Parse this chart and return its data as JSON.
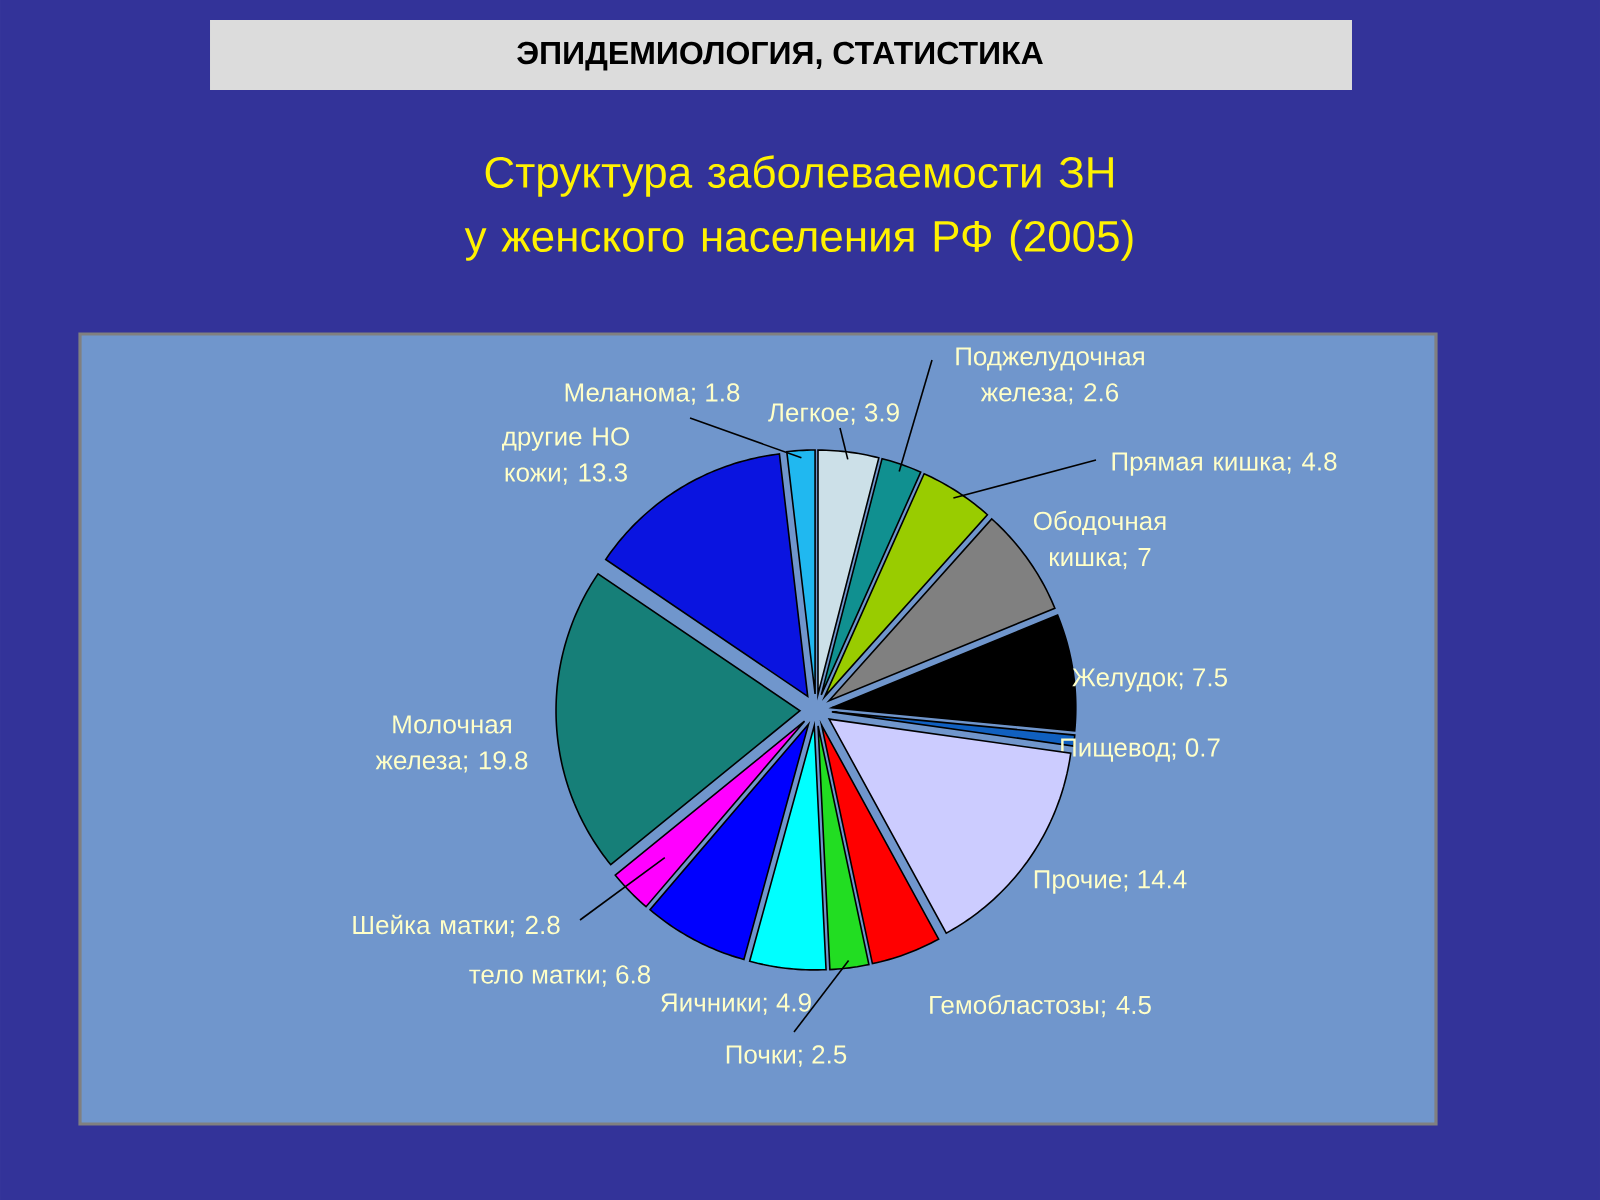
{
  "chart_data": {
    "type": "pie",
    "title": "ЭПИДЕМИОЛОГИЯ, СТАТИСТИКА",
    "subtitle": "Структура заболеваемости ЗН у женского населения РФ (2005)",
    "categories": [
      "Легкое",
      "Поджелудочная железа",
      "Прямая кишка",
      "Ободочная кишка",
      "Желудок",
      "Пищевод",
      "Прочие",
      "Гемобластозы",
      "Почки",
      "Яичники",
      "тело матки",
      "Шейка матки",
      "Молочная железа",
      "другие НО кожи",
      "Меланома"
    ],
    "values": [
      3.9,
      2.6,
      4.8,
      7,
      7.5,
      0.7,
      14.4,
      4.5,
      2.5,
      4.9,
      6.8,
      2.8,
      19.8,
      13.3,
      1.8
    ],
    "colors": [
      "#cce0e8",
      "#109090",
      "#99cc00",
      "#808080",
      "#000000",
      "#1060c0",
      "#ccccff",
      "#ff0000",
      "#22dd22",
      "#00ffff",
      "#0000ff",
      "#ff00ff",
      "#167f78",
      "#0a14e0",
      "#20b8f0"
    ],
    "value_labels": [
      "; 3.9",
      "; 2.6",
      "; 4.8",
      "; 7",
      "; 7.5",
      "; 0.7",
      "; 14.4",
      "; 4.5",
      "; 2.5",
      "; 4.9",
      "; 6.8",
      "; 2.8",
      "; 19.8",
      "; 13.3",
      "; 1.8"
    ],
    "legend": false
  }
}
